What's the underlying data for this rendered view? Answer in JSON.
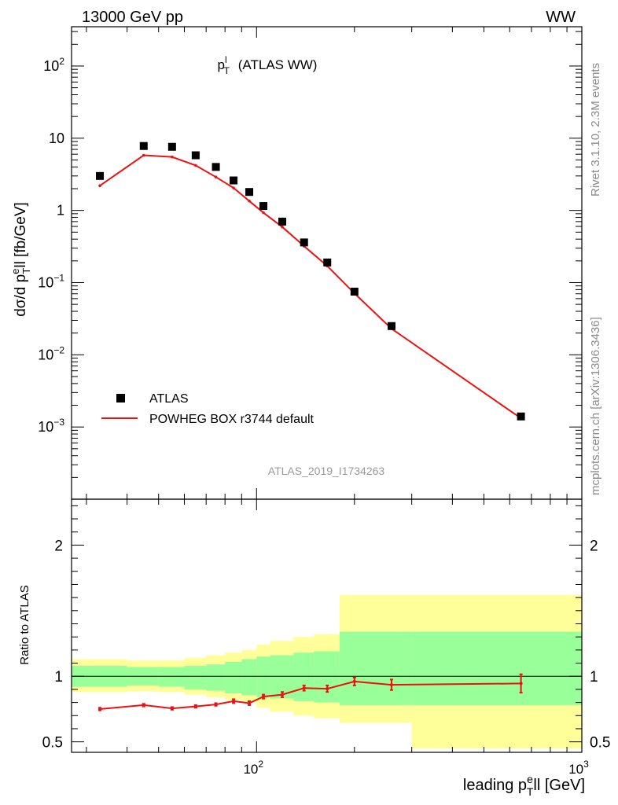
{
  "header": {
    "left": "13000 GeV pp",
    "right": "WW"
  },
  "side_labels": {
    "top": "Rivet 3.1.10,  2.3M events",
    "bottom": "mcplots.cern.ch [arXiv:1306.3436]"
  },
  "watermark": "ATLAS_2019_I1734263",
  "colors": {
    "mc": "#ee1111",
    "data": "#000000",
    "band_inner": "#99ff99",
    "band_outer": "#ffff99"
  },
  "chart_data": [
    {
      "type": "scatter",
      "title": "p_T^l (ATLAS WW)",
      "xlabel": "leading p_T^e ll [GeV]",
      "ylabel": "dσ/d p_T^e ll [fb/GeV]",
      "xscale": "log",
      "yscale": "log",
      "xlim": [
        27,
        1000
      ],
      "ylim": [
        0.0001,
        350
      ],
      "x_ticklabels": [
        "10^2",
        "10^3"
      ],
      "y_ticklabels": [
        "10^-3",
        "10^-2",
        "10^-1",
        "1",
        "10",
        "10^2"
      ],
      "legend_position": "bottom-left",
      "series": [
        {
          "name": "ATLAS",
          "style": "markers",
          "x": [
            33,
            45,
            55,
            65,
            75,
            85,
            95,
            105,
            120,
            140,
            165,
            200,
            260,
            650
          ],
          "y": [
            3.0,
            7.8,
            7.6,
            5.8,
            4.0,
            2.6,
            1.8,
            1.15,
            0.7,
            0.36,
            0.19,
            0.075,
            0.025,
            0.0014
          ]
        },
        {
          "name": "POWHEG BOX r3744 default",
          "style": "line",
          "x": [
            33,
            45,
            55,
            65,
            75,
            85,
            95,
            105,
            120,
            140,
            165,
            200,
            260,
            650
          ],
          "y": [
            2.2,
            5.8,
            5.5,
            4.2,
            2.9,
            2.05,
            1.35,
            0.93,
            0.59,
            0.32,
            0.17,
            0.071,
            0.023,
            0.00132
          ]
        }
      ]
    },
    {
      "type": "line",
      "ylabel": "Ratio to ATLAS",
      "xscale": "log",
      "xlim": [
        27,
        1000
      ],
      "ylim": [
        0.42,
        2.35
      ],
      "y_ticklabels": [
        "0.5",
        "1",
        "2"
      ],
      "reference_line": 1,
      "ratio": {
        "x": [
          33,
          45,
          55,
          65,
          75,
          85,
          95,
          105,
          120,
          140,
          165,
          200,
          260,
          650
        ],
        "y": [
          0.75,
          0.78,
          0.755,
          0.77,
          0.785,
          0.81,
          0.795,
          0.845,
          0.86,
          0.91,
          0.905,
          0.96,
          0.935,
          0.945
        ],
        "err": [
          0.01,
          0.01,
          0.01,
          0.01,
          0.01,
          0.015,
          0.015,
          0.015,
          0.02,
          0.02,
          0.025,
          0.03,
          0.04,
          0.07
        ]
      },
      "bands": {
        "edges": [
          27,
          30,
          40,
          50,
          60,
          70,
          80,
          90,
          100,
          110,
          130,
          150,
          180,
          300,
          1000
        ],
        "inner_low": [
          0.92,
          0.92,
          0.93,
          0.92,
          0.9,
          0.89,
          0.87,
          0.855,
          0.84,
          0.83,
          0.81,
          0.8,
          0.78,
          0.78
        ],
        "inner_high": [
          1.08,
          1.08,
          1.07,
          1.07,
          1.08,
          1.09,
          1.11,
          1.13,
          1.15,
          1.16,
          1.18,
          1.19,
          1.34,
          1.34
        ],
        "outer_low": [
          0.88,
          0.88,
          0.885,
          0.88,
          0.86,
          0.84,
          0.82,
          0.8,
          0.76,
          0.73,
          0.7,
          0.68,
          0.645,
          0.45
        ],
        "outer_high": [
          1.13,
          1.13,
          1.12,
          1.12,
          1.14,
          1.16,
          1.18,
          1.2,
          1.24,
          1.27,
          1.3,
          1.32,
          1.62,
          1.62
        ]
      }
    }
  ]
}
